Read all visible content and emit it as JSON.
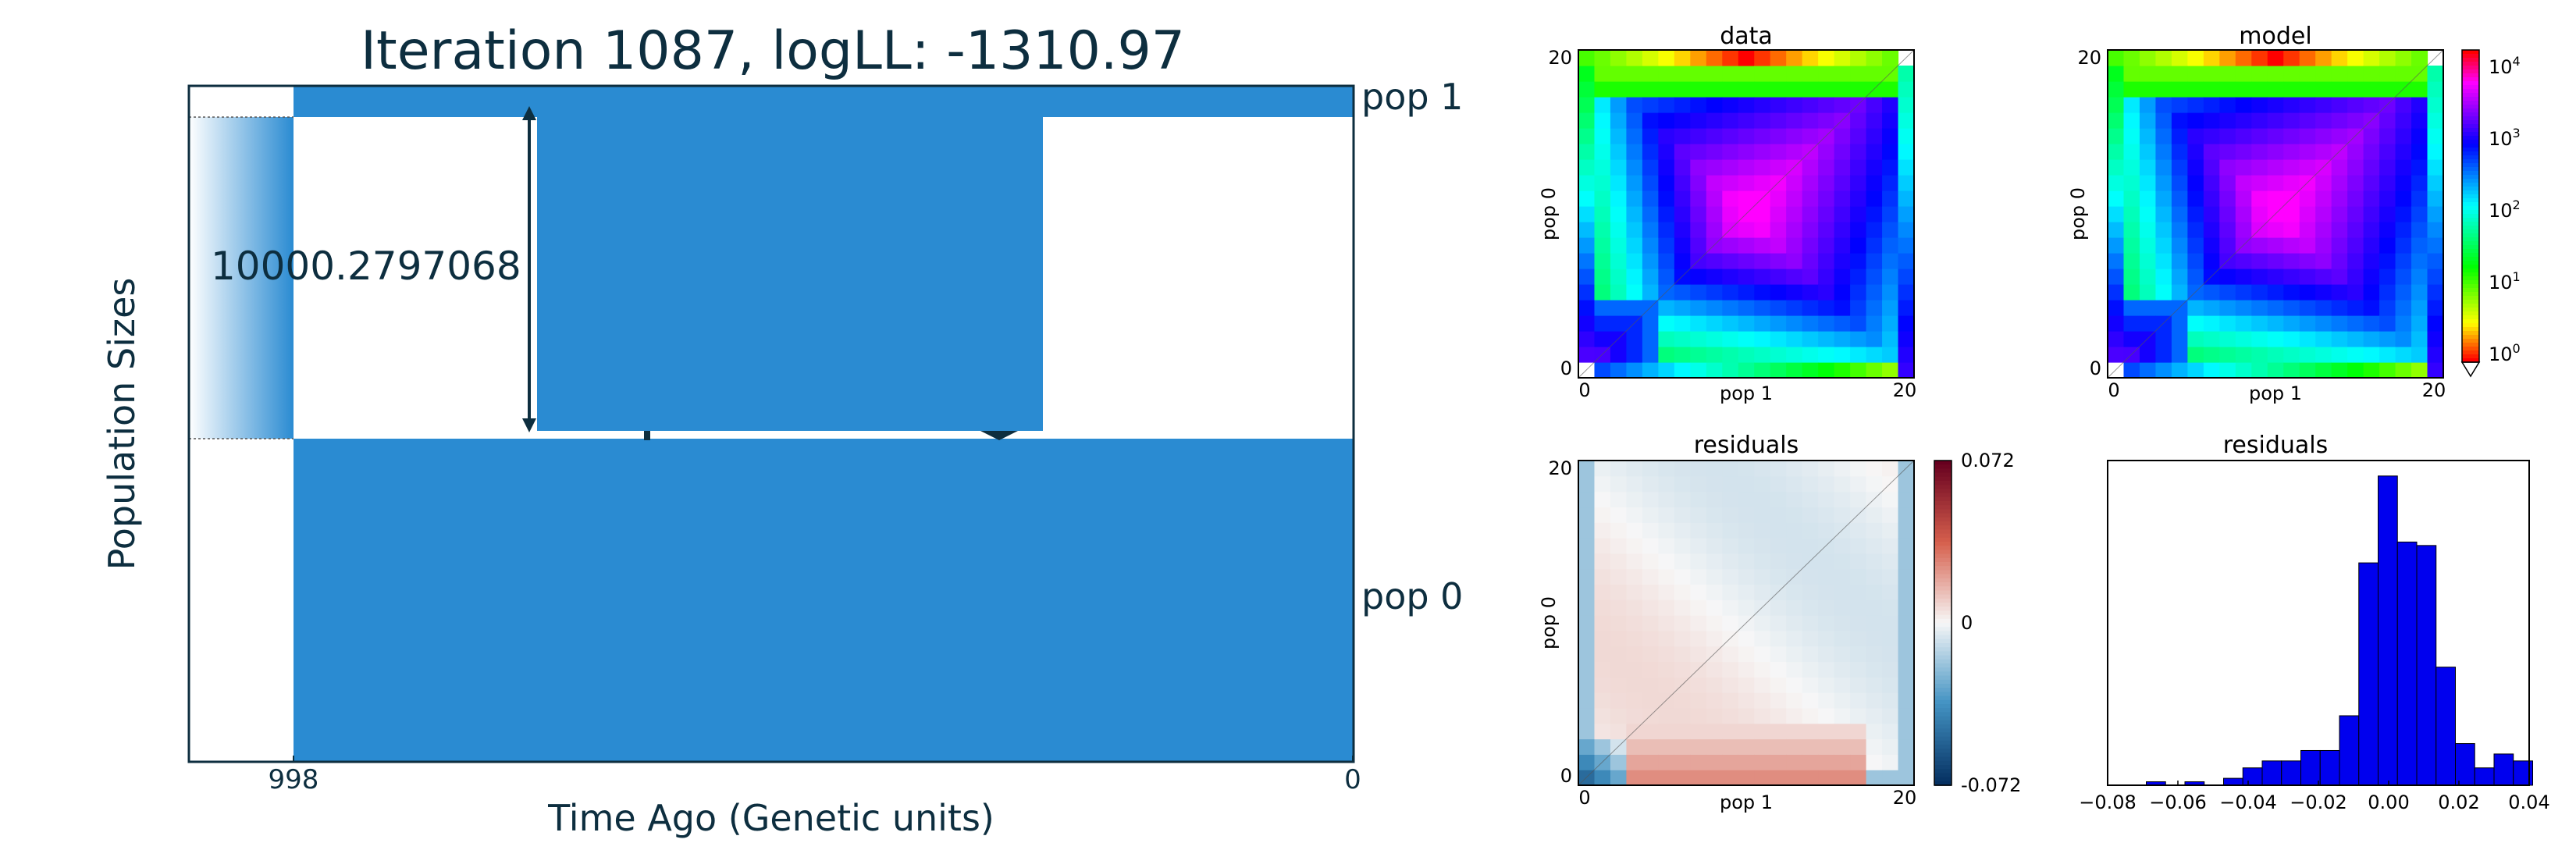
{
  "demography": {
    "title": "Iteration 1087, logLL:   -1310.97",
    "xlabel": "Time Ago (Genetic units)",
    "ylabel": "Population Sizes",
    "pop_labels": [
      "pop 1",
      "pop 0"
    ],
    "size_annotation": "10000.2797068",
    "x_ticks": [
      "998",
      "0"
    ],
    "fill_color": "#2a8bd2"
  },
  "chart_data": [
    {
      "type": "heatmap",
      "title": "data",
      "xlabel": "pop 1",
      "ylabel": "pop 0",
      "x_ticks": [
        "0",
        "20"
      ],
      "y_ticks": [
        "0",
        "20"
      ],
      "grid_size": 21,
      "scale": "log"
    },
    {
      "type": "heatmap",
      "title": "model",
      "xlabel": "pop 1",
      "ylabel": "pop 0",
      "x_ticks": [
        "0",
        "20"
      ],
      "y_ticks": [
        "0",
        "20"
      ],
      "grid_size": 21,
      "scale": "log",
      "colorbar_ticks": [
        {
          "base": "10",
          "exp": "4"
        },
        {
          "base": "10",
          "exp": "3"
        },
        {
          "base": "10",
          "exp": "2"
        },
        {
          "base": "10",
          "exp": "1"
        },
        {
          "base": "10",
          "exp": "0"
        }
      ]
    },
    {
      "type": "heatmap",
      "title": "residuals",
      "xlabel": "pop 1",
      "ylabel": "pop 0",
      "x_ticks": [
        "0",
        "20"
      ],
      "y_ticks": [
        "0",
        "20"
      ],
      "grid_size": 21,
      "colorbar_ticks": [
        "0.072",
        "0",
        "-0.072"
      ],
      "range": [
        -0.072,
        0.072
      ]
    },
    {
      "type": "bar",
      "title": "residuals",
      "bar_color": "#0000ee",
      "x_ticks": [
        "−0.08",
        "−0.06",
        "−0.04",
        "−0.02",
        "0.00",
        "0.02",
        "0.04"
      ],
      "xlim": [
        -0.08,
        0.04
      ],
      "bin_width": 0.0055,
      "bin_starts": [
        -0.0745,
        -0.069,
        -0.0635,
        -0.058,
        -0.0525,
        -0.047,
        -0.0415,
        -0.036,
        -0.0305,
        -0.025,
        -0.0195,
        -0.014,
        -0.0085,
        -0.003,
        0.0025,
        0.008,
        0.0135,
        0.019,
        0.0245,
        0.03,
        0.0355
      ],
      "counts": [
        0,
        1,
        0,
        1,
        0,
        2,
        5,
        7,
        7,
        10,
        10,
        20,
        64,
        89,
        70,
        69,
        34,
        12,
        5,
        9,
        7
      ]
    }
  ]
}
